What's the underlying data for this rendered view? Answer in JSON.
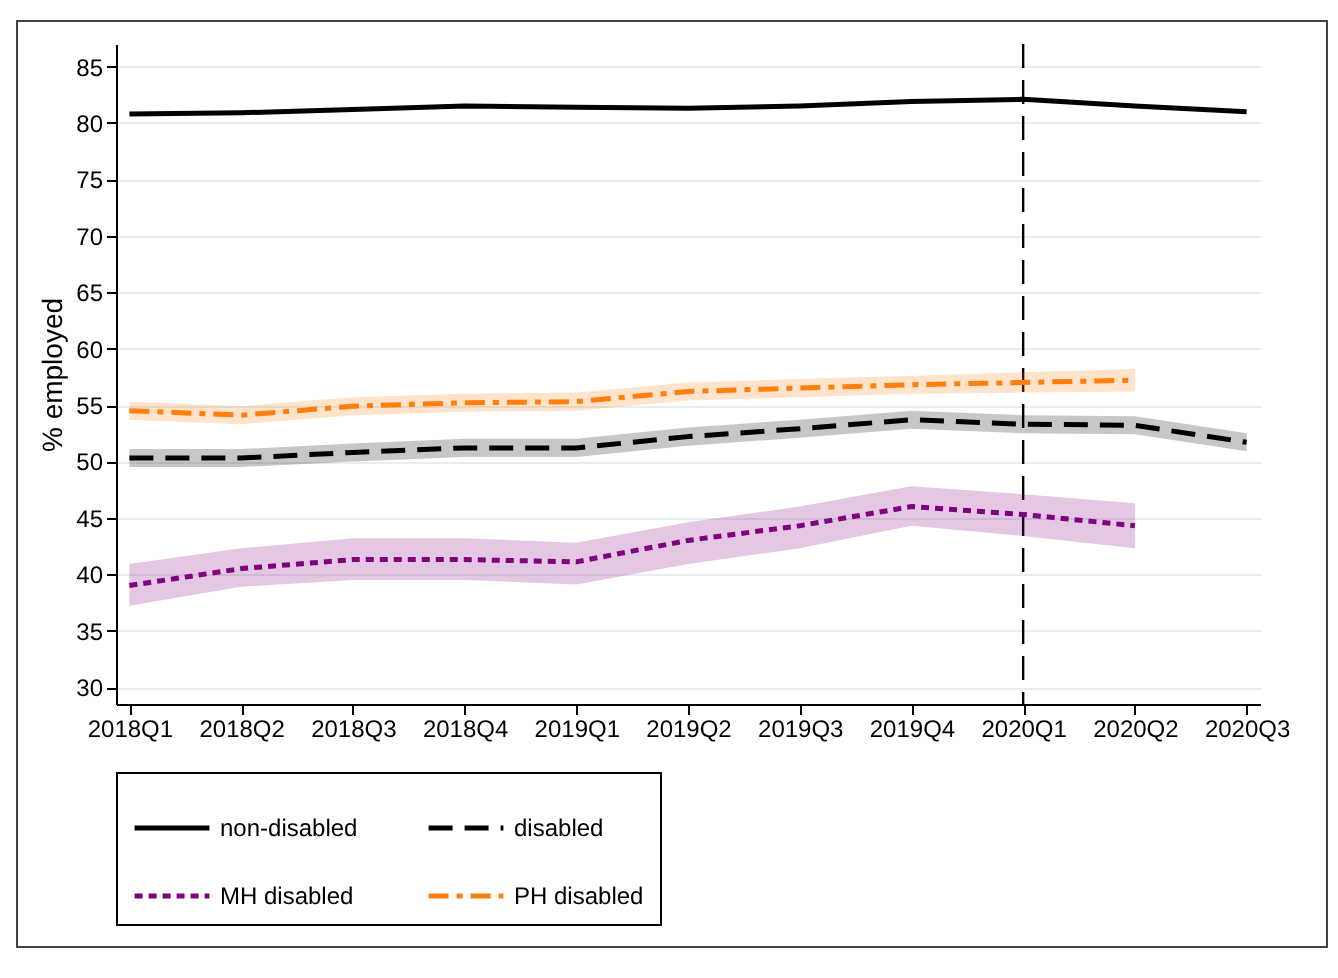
{
  "chart_data": {
    "type": "line",
    "ylabel": "% employed",
    "categories": [
      "2018Q1",
      "2018Q2",
      "2018Q3",
      "2018Q4",
      "2019Q1",
      "2019Q2",
      "2019Q3",
      "2019Q4",
      "2020Q1",
      "2020Q2",
      "2020Q3"
    ],
    "series": [
      {
        "name": "non-disabled",
        "color": "#000000",
        "line_style": "solid",
        "values": [
          80.8,
          80.9,
          81.2,
          81.5,
          81.4,
          81.3,
          81.5,
          81.9,
          82.1,
          81.5,
          81.0
        ]
      },
      {
        "name": "disabled",
        "color": "#000000",
        "line_style": "dashed",
        "values": [
          50.3,
          50.3,
          50.8,
          51.2,
          51.2,
          52.2,
          52.9,
          53.7,
          53.3,
          53.2,
          51.7
        ],
        "lower": [
          49.5,
          49.5,
          50.0,
          50.4,
          50.4,
          51.4,
          52.1,
          52.9,
          52.5,
          52.4,
          50.9
        ],
        "upper": [
          51.1,
          51.1,
          51.6,
          52.0,
          52.0,
          53.0,
          53.7,
          54.5,
          54.1,
          54.0,
          52.5
        ]
      },
      {
        "name": "MH disabled",
        "color": "#800080",
        "line_style": "dotted",
        "values": [
          39.0,
          40.5,
          41.3,
          41.3,
          41.1,
          43.0,
          44.3,
          46.0,
          45.3,
          44.3,
          null
        ],
        "lower": [
          37.2,
          38.9,
          39.5,
          39.5,
          39.1,
          40.9,
          42.3,
          44.3,
          43.4,
          42.3,
          null
        ],
        "upper": [
          40.9,
          42.3,
          43.2,
          43.2,
          42.8,
          44.6,
          46.0,
          47.8,
          47.1,
          46.3,
          null
        ]
      },
      {
        "name": "PH disabled",
        "color": "#ff7f0e",
        "line_style": "dashdot",
        "values": [
          54.5,
          54.1,
          54.9,
          55.2,
          55.3,
          56.2,
          56.5,
          56.8,
          57.0,
          57.2,
          null
        ],
        "lower": [
          53.7,
          53.3,
          54.1,
          54.4,
          54.5,
          55.4,
          55.7,
          56.0,
          56.1,
          56.2,
          null
        ],
        "upper": [
          55.3,
          54.9,
          55.7,
          56.0,
          56.1,
          57.0,
          57.3,
          57.6,
          57.9,
          58.2,
          null
        ]
      }
    ],
    "ylim": [
      28.5,
      87
    ],
    "yticks": [
      30,
      35,
      40,
      45,
      50,
      55,
      60,
      65,
      70,
      75,
      80,
      85
    ],
    "grid": "y",
    "legend": "bottom",
    "ref_lines": [
      {
        "axis": "x",
        "value": "2020Q1",
        "line_style": "dashed",
        "color": "#000000"
      }
    ]
  }
}
